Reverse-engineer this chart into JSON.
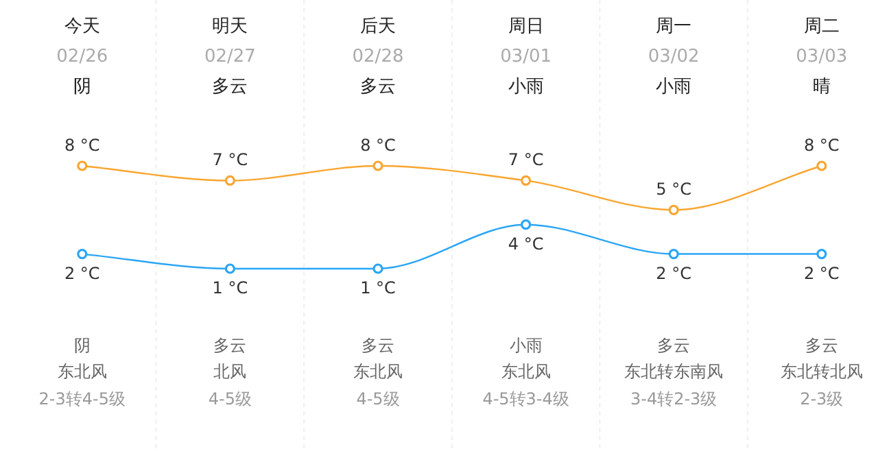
{
  "chart_data": {
    "type": "line",
    "categories": [
      "今天",
      "明天",
      "后天",
      "周日",
      "周一",
      "周二"
    ],
    "series": [
      {
        "color": "#f9a52f",
        "values": [
          8,
          7,
          8,
          7,
          5,
          8
        ],
        "value_labels": [
          "8 °C",
          "7 °C",
          "8 °C",
          "7 °C",
          "5 °C",
          "8 °C"
        ]
      },
      {
        "color": "#2aa5f5",
        "values": [
          2,
          1,
          1,
          4,
          2,
          2
        ],
        "value_labels": [
          "2 °C",
          "1 °C",
          "1 °C",
          "4 °C",
          "2 °C",
          "2 °C"
        ]
      }
    ],
    "annotations": [
      "02/26",
      "02/27",
      "02/28",
      "03/01",
      "03/02",
      "03/03",
      "阴",
      "多云",
      "多云",
      "小雨",
      "小雨",
      "晴",
      "阴",
      "多云",
      "多云",
      "小雨",
      "多云",
      "多云",
      "东北风",
      "北风",
      "东北风",
      "东北风",
      "东北转东南风",
      "东北转北风",
      "2-3转4-5级",
      "4-5级",
      "4-5级",
      "4-5转3-4级",
      "3-4转2-3级",
      "2-3级"
    ],
    "marker": "circle",
    "grid": "x"
  }
}
